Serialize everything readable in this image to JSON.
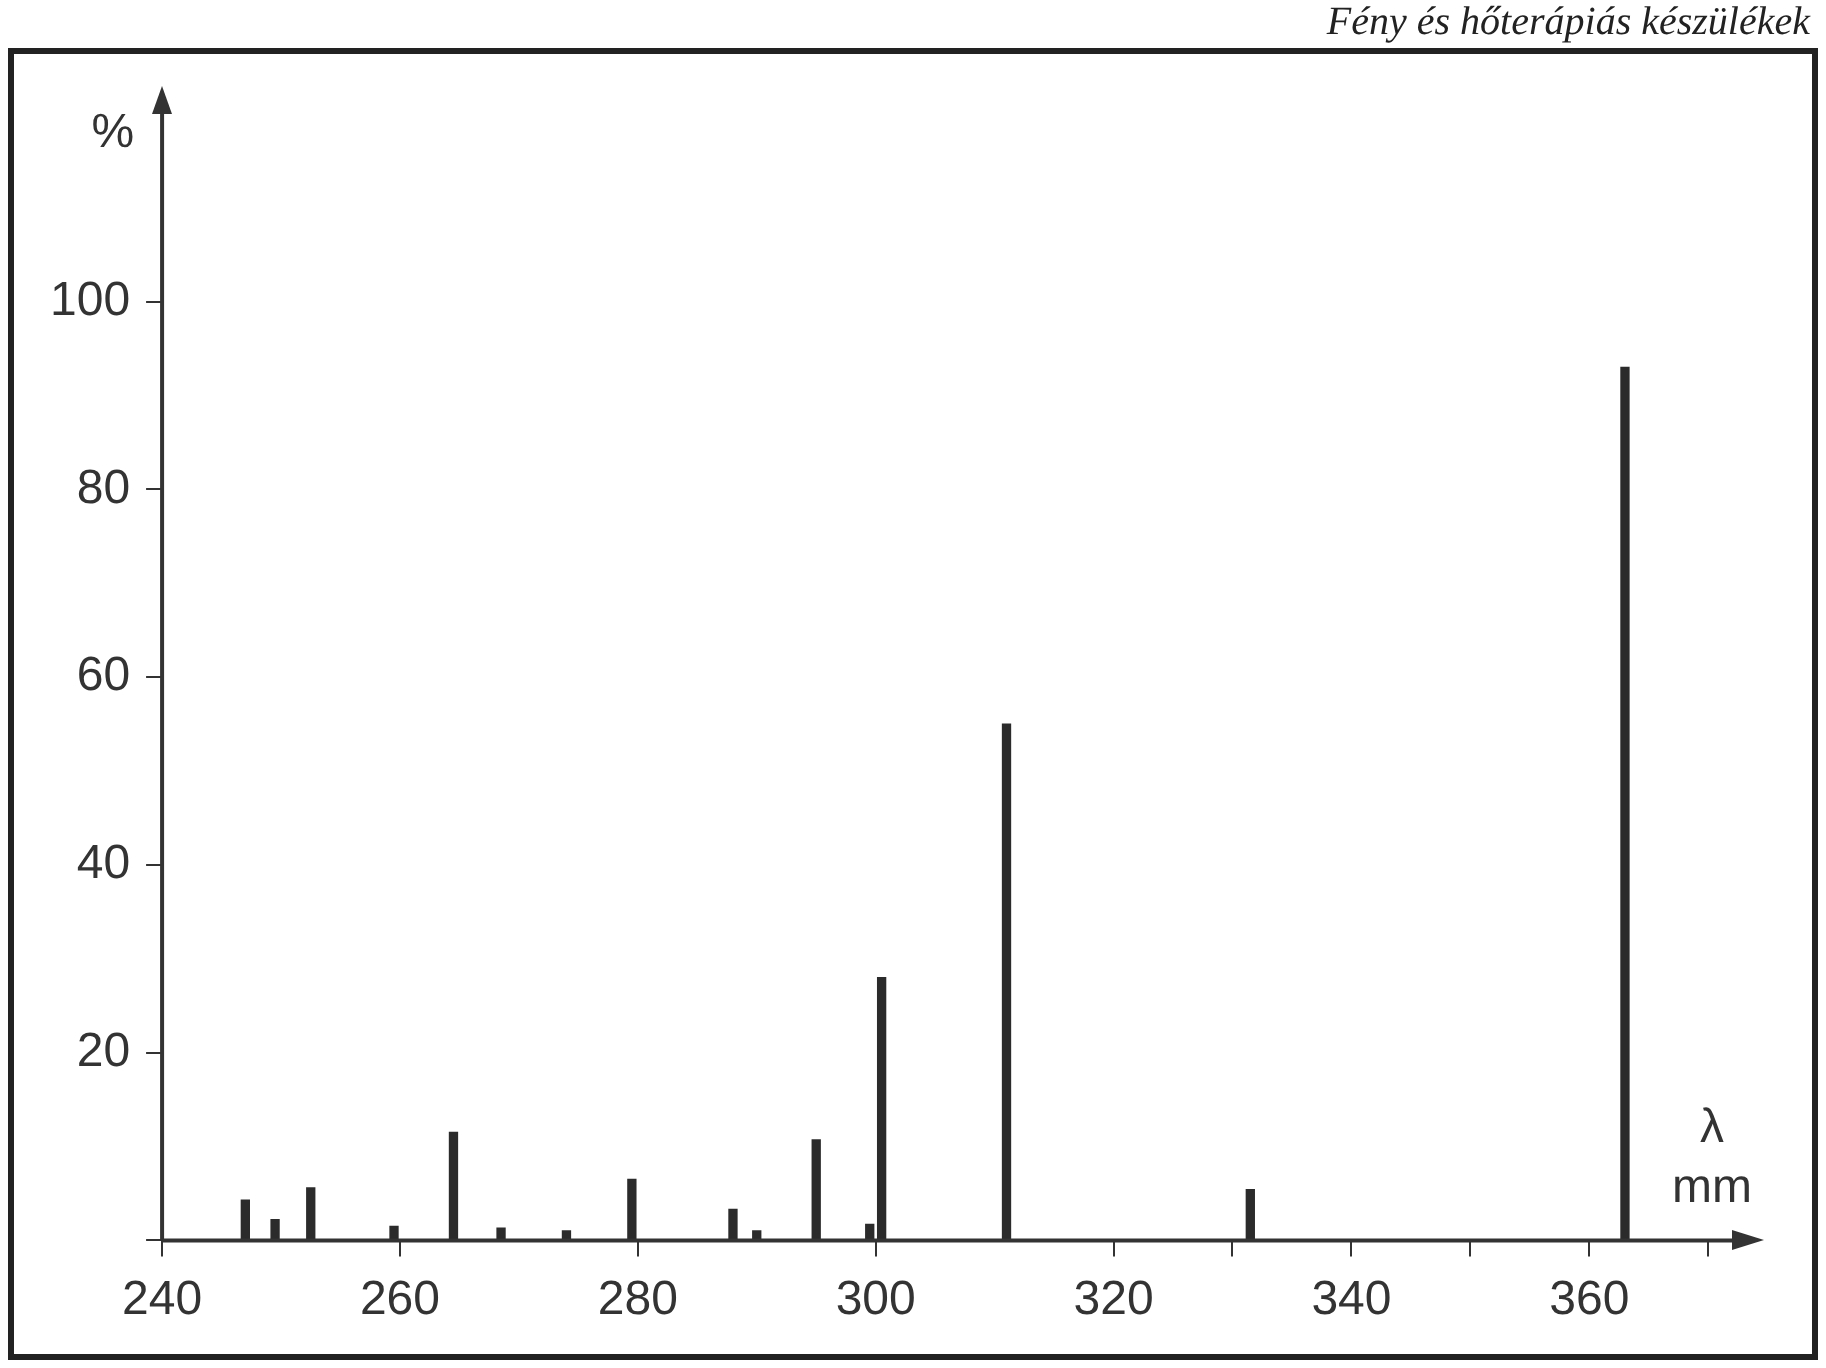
{
  "chart_data": {
    "type": "bar",
    "ylabel": "%",
    "xlabel": "λ mm",
    "annotations": [
      "Fény és hőterápiás készülékek"
    ],
    "x": [
      247,
      249.5,
      252.5,
      259.5,
      264.5,
      268.5,
      274,
      279.5,
      288,
      290,
      295,
      299.5,
      300.5,
      311,
      331.5,
      363
    ],
    "values": [
      4.3,
      2.2,
      5.6,
      1.5,
      11.5,
      1.3,
      1,
      6.5,
      3.3,
      1,
      10.7,
      1.7,
      28,
      55,
      5.4,
      93
    ],
    "color": "#2b2b2b",
    "xlim": [
      240,
      372
    ],
    "xticks": [
      240,
      260,
      280,
      300,
      320,
      {
        "value": 330,
        "label": null
      },
      340,
      {
        "value": 350,
        "label": null
      },
      360,
      {
        "value": 370,
        "label": null
      }
    ],
    "ylim": [
      0,
      120
    ],
    "yticks": [
      {
        "value": 0,
        "label": null
      },
      20,
      40,
      60,
      80,
      100
    ],
    "grid": false,
    "legend": false
  }
}
